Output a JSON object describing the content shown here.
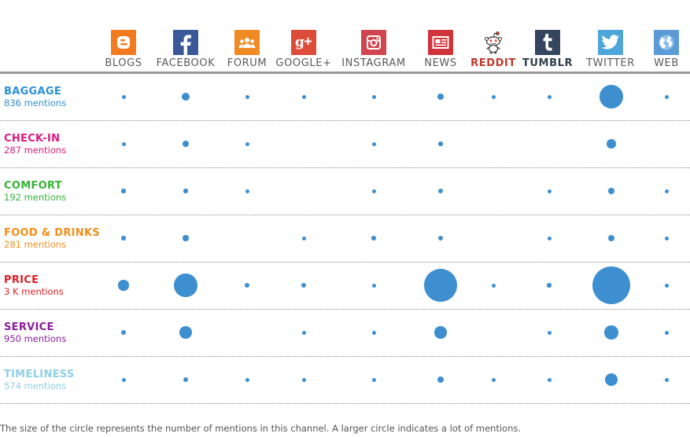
{
  "channels": [
    {
      "label": "BLOGS",
      "icon": "blogger-icon",
      "icon_color": "#f47a20",
      "label_color": "#5a5a5a"
    },
    {
      "label": "FACEBOOK",
      "icon": "facebook-icon",
      "icon_color": "#3b5998",
      "label_color": "#5a5a5a"
    },
    {
      "label": "FORUM",
      "icon": "forum-icon",
      "icon_color": "#f08a24",
      "label_color": "#5a5a5a"
    },
    {
      "label": "GOOGLE+",
      "icon": "google-plus-icon",
      "icon_color": "#dd4b39",
      "label_color": "#5a5a5a"
    },
    {
      "label": "INSTAGRAM",
      "icon": "instagram-icon",
      "icon_color": "#d0454f",
      "label_color": "#5a5a5a"
    },
    {
      "label": "NEWS",
      "icon": "news-icon",
      "icon_color": "#d0343a",
      "label_color": "#5a5a5a"
    },
    {
      "label": "REDDIT",
      "icon": "reddit-icon",
      "icon_color": "#ffffff",
      "label_color": "#c0392b"
    },
    {
      "label": "TUMBLR",
      "icon": "tumblr-icon",
      "icon_color": "#34465d",
      "label_color": "#2f3e50"
    },
    {
      "label": "TWITTER",
      "icon": "twitter-icon",
      "icon_color": "#4ea5d9",
      "label_color": "#5a5a5a"
    },
    {
      "label": "WEB",
      "icon": "globe-icon",
      "icon_color": "#5b9bd5",
      "label_color": "#5a5a5a"
    }
  ],
  "colors": {
    "bubble": "#3d8fd0"
  },
  "chart_data": {
    "type": "bubble-matrix",
    "x_categories": [
      "BLOGS",
      "FACEBOOK",
      "FORUM",
      "GOOGLE+",
      "INSTAGRAM",
      "NEWS",
      "REDDIT",
      "TUMBLR",
      "TWITTER",
      "WEB"
    ],
    "rows": [
      {
        "name": "BAGGAGE",
        "mentions_text": "836 mentions",
        "color": "#2b8fd6",
        "values": [
          4,
          22,
          3,
          3,
          4,
          13,
          3,
          3,
          170,
          3
        ]
      },
      {
        "name": "CHECK-IN",
        "mentions_text": "287 mentions",
        "color": "#e0197e",
        "values": [
          3,
          11,
          3,
          0,
          3,
          6,
          0,
          0,
          26,
          0
        ]
      },
      {
        "name": "COMFORT",
        "mentions_text": "192 mentions",
        "color": "#36b336",
        "values": [
          5,
          5,
          3,
          0,
          4,
          7,
          0,
          4,
          11,
          3
        ]
      },
      {
        "name": "FOOD & DRINKS",
        "mentions_text": "281 mentions",
        "color": "#f28d1a",
        "values": [
          6,
          10,
          0,
          3,
          6,
          9,
          0,
          3,
          12,
          3
        ]
      },
      {
        "name": "PRICE",
        "mentions_text": "3 K mentions",
        "color": "#dc1f26",
        "values": [
          34,
          170,
          7,
          7,
          3,
          340,
          3,
          6,
          450,
          4
        ]
      },
      {
        "name": "SERVICE",
        "mentions_text": "950 mentions",
        "color": "#8a1c9e",
        "values": [
          7,
          48,
          0,
          4,
          3,
          45,
          0,
          3,
          60,
          4
        ]
      },
      {
        "name": "TIMELINESS",
        "mentions_text": "574 mentions",
        "color": "#8fcfe8",
        "values": [
          4,
          9,
          3,
          4,
          3,
          14,
          3,
          4,
          55,
          3
        ]
      }
    ],
    "note": "The size of the circle represents the number of mentions in this channel. A larger circle indicates a lot of mentions."
  }
}
